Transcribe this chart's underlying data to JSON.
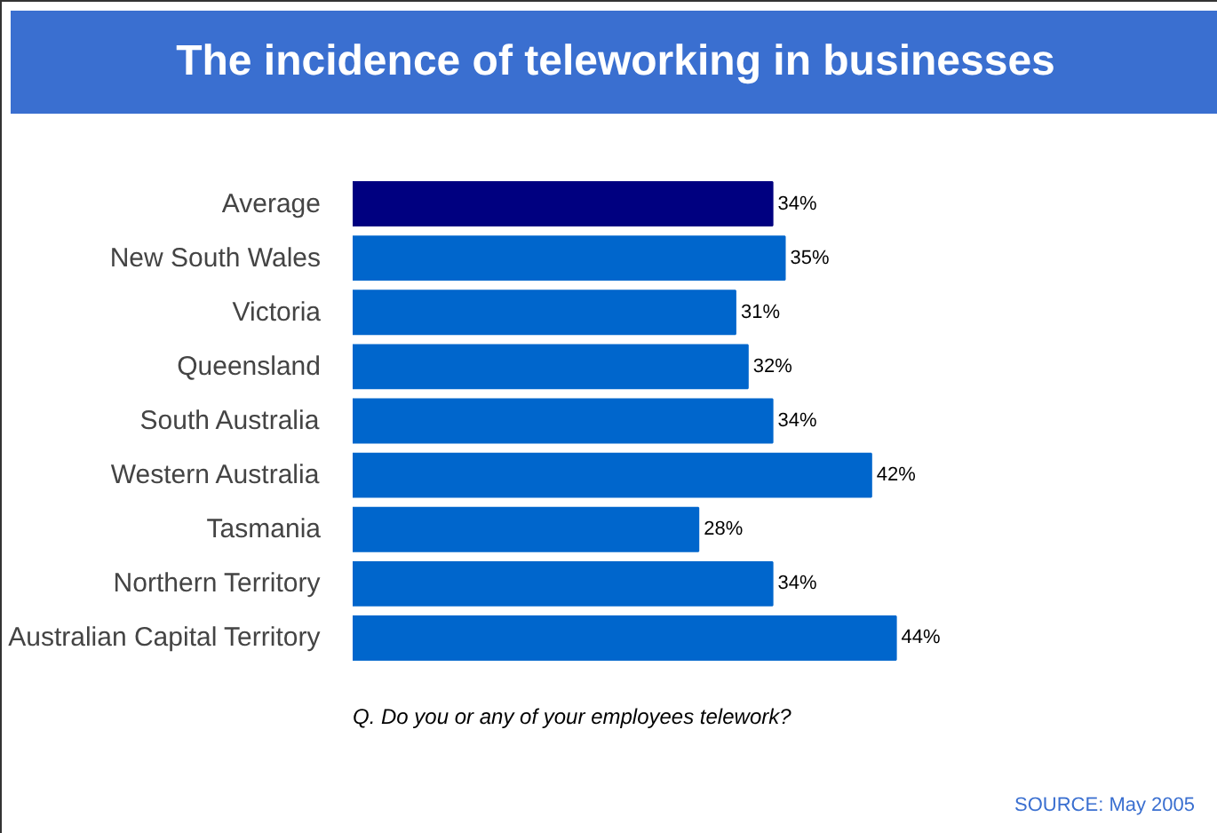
{
  "chart_data": {
    "type": "bar",
    "orientation": "horizontal",
    "title": "The incidence of teleworking in businesses",
    "categories": [
      "Average",
      "New South Wales",
      "Victoria",
      "Queensland",
      "South Australia",
      "Western Australia",
      "Tasmania",
      "Northern Territory",
      "Australian Capital Territory"
    ],
    "values": [
      34,
      35,
      31,
      32,
      34,
      42,
      28,
      34,
      44
    ],
    "value_labels": [
      "34%",
      "35%",
      "31%",
      "32%",
      "34%",
      "42%",
      "28%",
      "34%",
      "44%"
    ],
    "colors": [
      "#000080",
      "#0066cc",
      "#0066cc",
      "#0066cc",
      "#0066cc",
      "#0066cc",
      "#0066cc",
      "#0066cc",
      "#0066cc"
    ],
    "annotations": [
      "Q. Do you or any of your employees telework?",
      "SOURCE: May 2005"
    ]
  }
}
